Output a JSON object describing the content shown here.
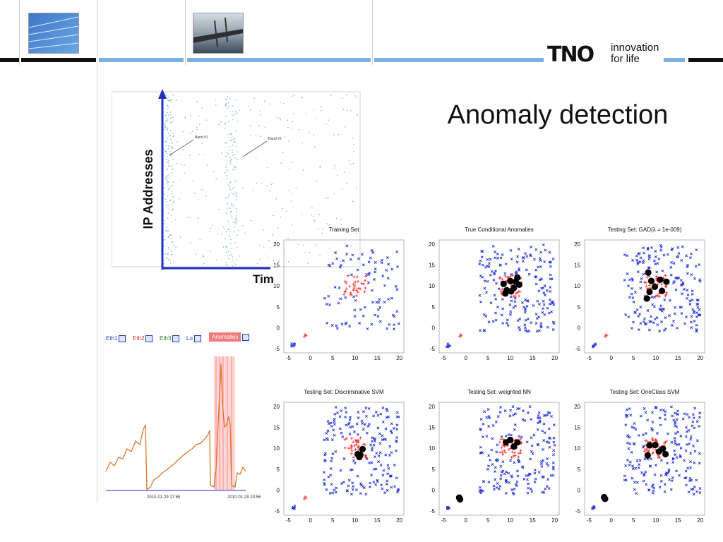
{
  "slide": {
    "title": "Anomaly detection",
    "logo_text": "TNO",
    "tagline_1": "innovation",
    "tagline_2": "for life",
    "colors": {
      "band_blue": "#7fb0db",
      "band_dark": "#111111",
      "anomaly_red": "#ff3333",
      "normal_blue": "#1a2bd6",
      "detected_black": "#000000"
    }
  },
  "ip_plot": {
    "y_label": "IP Addresses",
    "x_label_partial": "Tim",
    "band1": "Band #1",
    "band2": "Band #2"
  },
  "traffic": {
    "legend": [
      {
        "label": "Eth1",
        "color": "#3344cc"
      },
      {
        "label": "Eth2",
        "color": "#e03030"
      },
      {
        "label": "Eth3",
        "color": "#2f7f2f"
      },
      {
        "label": "Lo",
        "color": "#3344cc"
      },
      {
        "label": "Anomalies",
        "color": "#ffffff"
      }
    ],
    "x_labels": [
      "2010-01-29 17:58",
      "2010-01-29 23:56"
    ]
  },
  "panels": [
    {
      "title": "Training Set"
    },
    {
      "title": "True Conditional Anomalies"
    },
    {
      "title": "Testing Set: GAD(λ = 1e-009)"
    },
    {
      "title": "Testing Set: Discriminative SVM"
    },
    {
      "title": "Testing Set: weighted NN"
    },
    {
      "title": "Testing Set: OneClass SVM"
    }
  ],
  "axes": {
    "x_ticks": [
      "-5",
      "0",
      "5",
      "10",
      "15",
      "20"
    ],
    "y_ticks": [
      "20",
      "15",
      "10",
      "5",
      "0",
      "-5"
    ]
  }
}
